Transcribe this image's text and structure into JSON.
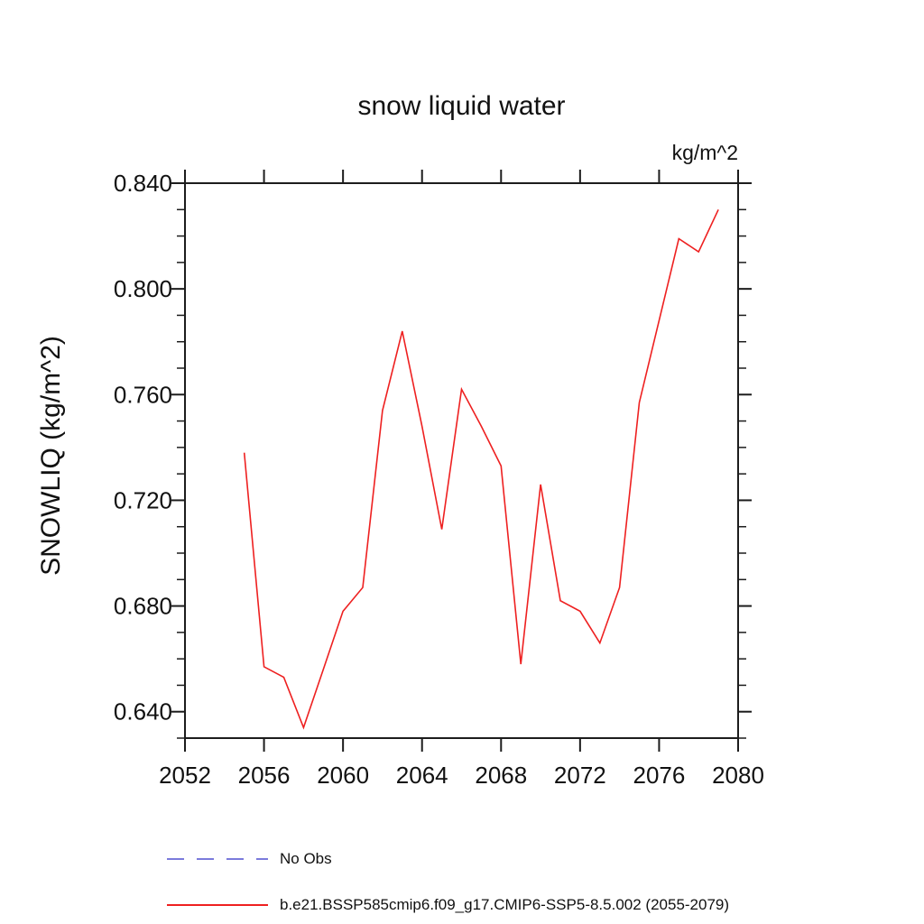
{
  "page": {
    "background": "#ffffff"
  },
  "chart_data": {
    "type": "line",
    "title": "snow liquid water",
    "unit_label": "kg/m^2",
    "ylabel": "SNOWLIQ  (kg/m^2)",
    "xlabel": "",
    "grid": false,
    "xlim": [
      2052,
      2080
    ],
    "ylim": [
      0.63,
      0.84
    ],
    "x_ticks": {
      "values": [
        2052,
        2056,
        2060,
        2064,
        2068,
        2072,
        2076,
        2080
      ],
      "labels": [
        "2052",
        "2056",
        "2060",
        "2064",
        "2068",
        "2072",
        "2076",
        "2080"
      ]
    },
    "y_ticks": {
      "values": [
        0.64,
        0.68,
        0.72,
        0.76,
        0.8,
        0.84
      ],
      "labels": [
        "0.640",
        "0.680",
        "0.720",
        "0.760",
        "0.800",
        "0.840"
      ],
      "minor_step": 0.01
    },
    "axis_color": "#1c1c1c",
    "series": [
      {
        "name": "b.e21.BSSP585cmip6.f09_g17.CMIP6-SSP5-8.5.002 (2055-2079)",
        "color": "#ee2020",
        "style": "solid",
        "x": [
          2055,
          2056,
          2057,
          2058,
          2059,
          2060,
          2061,
          2062,
          2063,
          2064,
          2065,
          2066,
          2067,
          2068,
          2069,
          2070,
          2071,
          2072,
          2073,
          2074,
          2075,
          2076,
          2077,
          2078,
          2079
        ],
        "values": [
          0.738,
          0.657,
          0.653,
          0.634,
          0.656,
          0.678,
          0.687,
          0.754,
          0.784,
          0.748,
          0.709,
          0.762,
          0.748,
          0.733,
          0.658,
          0.726,
          0.682,
          0.678,
          0.666,
          0.687,
          0.757,
          0.788,
          0.819,
          0.814,
          0.83
        ]
      }
    ],
    "legend": {
      "position": "bottom-left",
      "entries": [
        {
          "label": "No Obs",
          "color": "#7b7bdb",
          "style": "dashed"
        },
        {
          "label": "b.e21.BSSP585cmip6.f09_g17.CMIP6-SSP5-8.5.002 (2055-2079)",
          "color": "#ee2020",
          "style": "solid"
        }
      ]
    }
  }
}
